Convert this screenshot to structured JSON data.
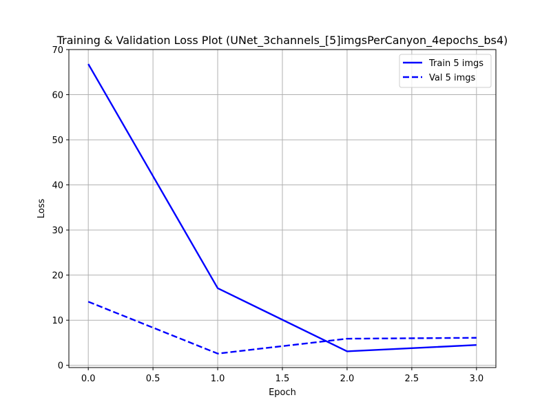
{
  "chart_data": {
    "type": "line",
    "title": "Training & Validation Loss Plot (UNet_3channels_[5]imgsPerCanyon_4epochs_bs4)",
    "xlabel": "Epoch",
    "ylabel": "Loss",
    "xlim": [
      -0.15,
      3.15
    ],
    "ylim": [
      -0.5,
      70
    ],
    "x_ticks": [
      0.0,
      0.5,
      1.0,
      1.5,
      2.0,
      2.5,
      3.0
    ],
    "x_tick_labels": [
      "0.0",
      "0.5",
      "1.0",
      "1.5",
      "2.0",
      "2.5",
      "3.0"
    ],
    "y_ticks": [
      0,
      10,
      20,
      30,
      40,
      50,
      60,
      70
    ],
    "y_tick_labels": [
      "0",
      "10",
      "20",
      "30",
      "40",
      "50",
      "60",
      "70"
    ],
    "grid": true,
    "legend_position": "top-right",
    "x": [
      0,
      1,
      2,
      3
    ],
    "series": [
      {
        "name": "Train 5 imgs",
        "values": [
          66.8,
          17.1,
          3.1,
          4.5
        ],
        "color": "#0000ff",
        "dash": "solid"
      },
      {
        "name": "Val 5 imgs",
        "values": [
          14.1,
          2.6,
          5.9,
          6.1
        ],
        "color": "#0000ff",
        "dash": "dashed"
      }
    ]
  }
}
